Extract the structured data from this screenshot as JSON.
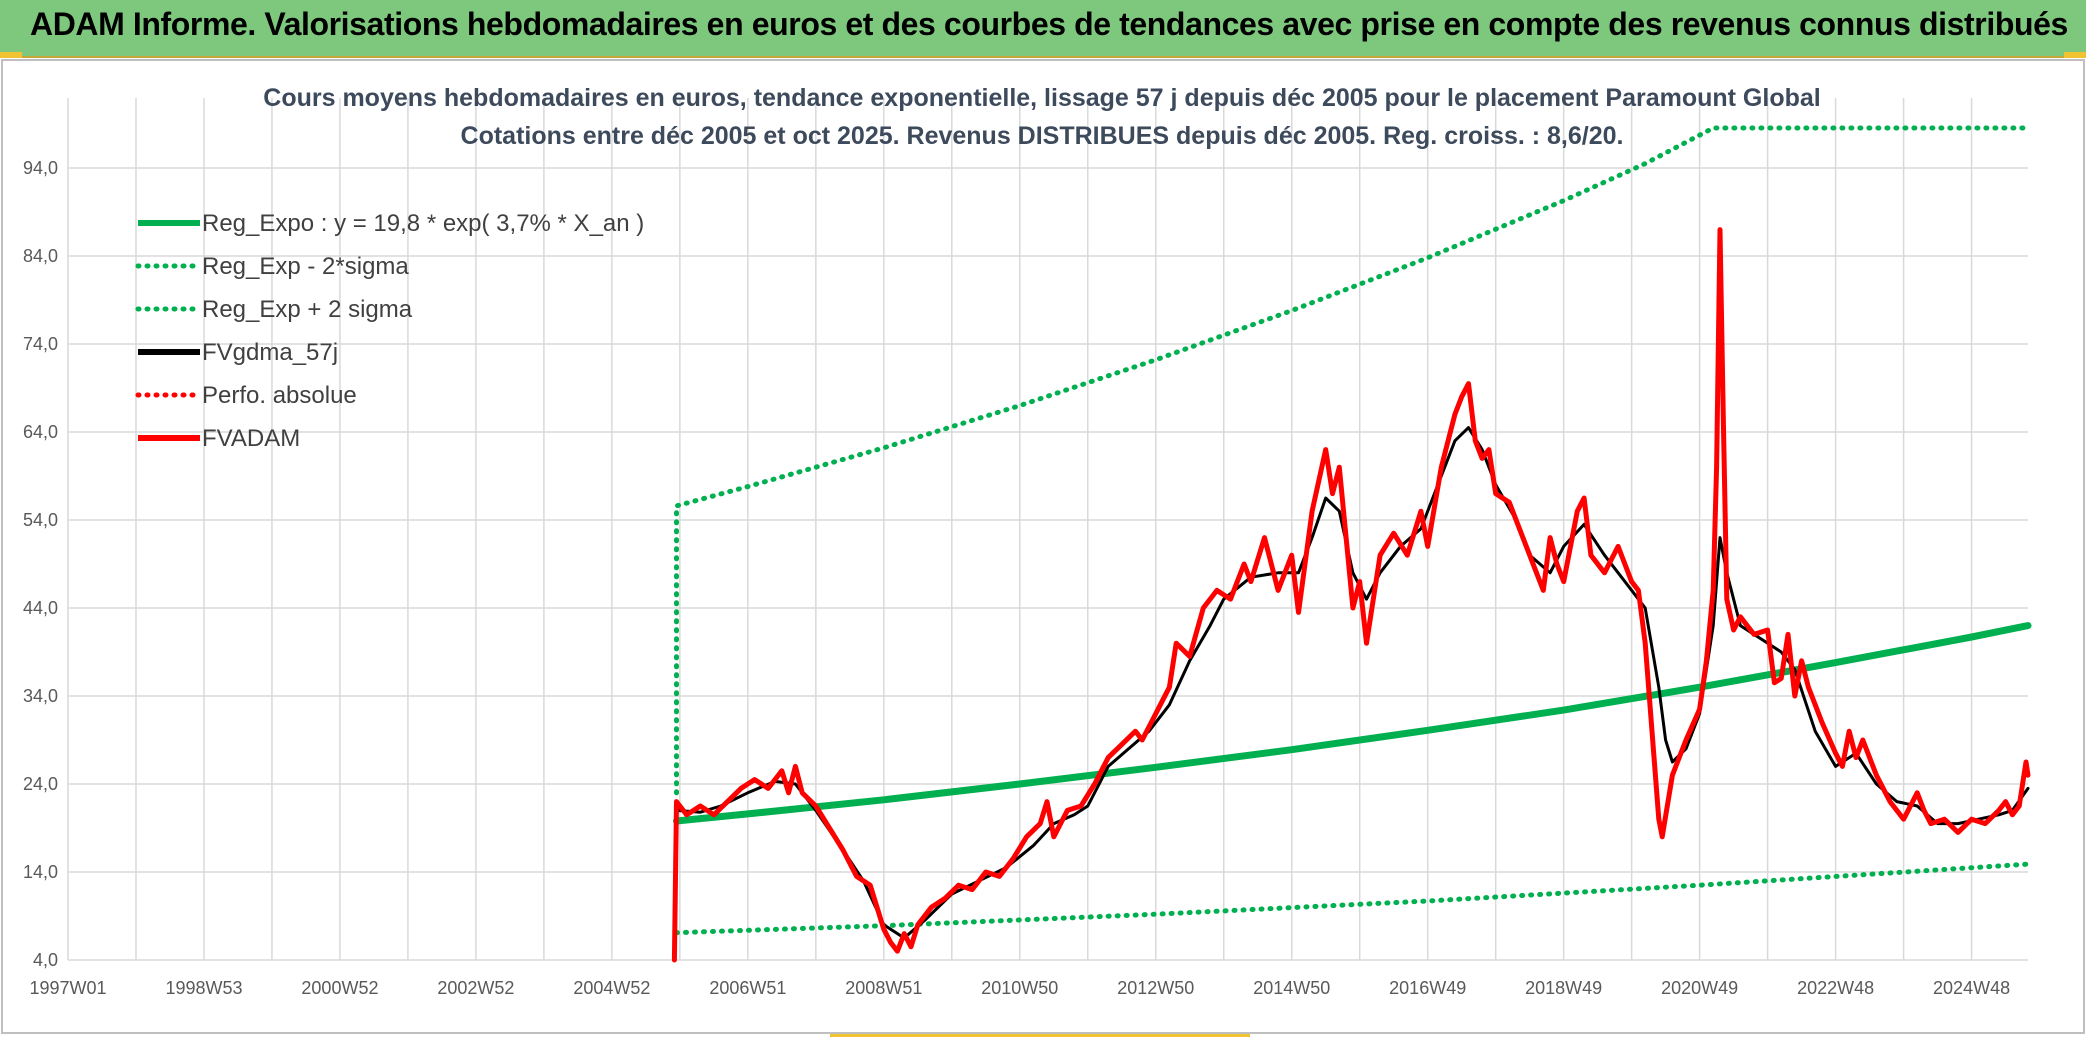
{
  "header": {
    "title": "ADAM Informe. Valorisations hebdomadaires en euros et des courbes de tendances avec prise en compte des revenus connus distribués"
  },
  "chart_data": {
    "type": "line",
    "title_lines": [
      "Cours moyens hebdomadaires en euros, tendance exponentielle, lissage 57 j depuis déc 2005 pour le placement Paramount Global",
      "Cotations entre déc 2005 et oct 2025. Revenus DISTRIBUES depuis déc 2005. Reg. croiss. : 8,6/20."
    ],
    "x_range": [
      1997.0,
      2025.83
    ],
    "ylim": [
      4,
      94
    ],
    "y_ticks": [
      "4,0",
      "14,0",
      "24,0",
      "34,0",
      "44,0",
      "54,0",
      "64,0",
      "74,0",
      "84,0",
      "94,0"
    ],
    "x_ticks": [
      {
        "label": "1997W01",
        "x": 1997.0
      },
      {
        "label": "1998W53",
        "x": 1999.0
      },
      {
        "label": "2000W52",
        "x": 2001.0
      },
      {
        "label": "2002W52",
        "x": 2003.0
      },
      {
        "label": "2004W52",
        "x": 2005.0
      },
      {
        "label": "2006W51",
        "x": 2007.0
      },
      {
        "label": "2008W51",
        "x": 2009.0
      },
      {
        "label": "2010W50",
        "x": 2011.0
      },
      {
        "label": "2012W50",
        "x": 2013.0
      },
      {
        "label": "2014W50",
        "x": 2015.0
      },
      {
        "label": "2016W49",
        "x": 2017.0
      },
      {
        "label": "2018W49",
        "x": 2019.0
      },
      {
        "label": "2020W49",
        "x": 2021.0
      },
      {
        "label": "2022W48",
        "x": 2023.0
      },
      {
        "label": "2024W48",
        "x": 2025.0
      }
    ],
    "grid": true,
    "legend_position": "top-left",
    "series": [
      {
        "name": "Reg_Expo : y = 19,8 * exp( 3,7% *  X_an )",
        "color": "#00b050",
        "style": "solid",
        "points": [
          [
            2005.95,
            19.8
          ],
          [
            2007,
            20.6
          ],
          [
            2009,
            22.2
          ],
          [
            2011,
            24.0
          ],
          [
            2013,
            25.9
          ],
          [
            2015,
            27.9
          ],
          [
            2017,
            30.1
          ],
          [
            2019,
            32.4
          ],
          [
            2021,
            35.0
          ],
          [
            2023,
            37.8
          ],
          [
            2025,
            40.7
          ],
          [
            2025.83,
            42.0
          ]
        ]
      },
      {
        "name": "Reg_Exp - 2*sigma",
        "color": "#00b050",
        "style": "dotted",
        "points": [
          [
            2005.95,
            7.1
          ],
          [
            2009,
            7.9
          ],
          [
            2013,
            9.2
          ],
          [
            2017,
            10.7
          ],
          [
            2021,
            12.5
          ],
          [
            2025.83,
            14.9
          ]
        ]
      },
      {
        "name": "Reg_Exp + 2 sigma",
        "color": "#00b050",
        "style": "dotted",
        "points": [
          [
            2005.95,
            23.0
          ],
          [
            2005.95,
            55.6
          ],
          [
            2007,
            57.8
          ],
          [
            2009,
            62.2
          ],
          [
            2011,
            67.0
          ],
          [
            2013,
            72.2
          ],
          [
            2015,
            77.8
          ],
          [
            2017,
            83.8
          ],
          [
            2019,
            90.3
          ],
          [
            2020.2,
            94.5
          ],
          [
            2021.2,
            99
          ],
          [
            2025.83,
            99
          ]
        ]
      },
      {
        "name": "FVgdma_57j",
        "color": "#000000",
        "style": "solid",
        "points": [
          [
            2005.95,
            21.0
          ],
          [
            2006.3,
            20.8
          ],
          [
            2006.6,
            21.5
          ],
          [
            2007.0,
            23.0
          ],
          [
            2007.4,
            24.3
          ],
          [
            2007.7,
            24.0
          ],
          [
            2008.0,
            21.0
          ],
          [
            2008.4,
            16.5
          ],
          [
            2008.7,
            13.0
          ],
          [
            2009.0,
            8.0
          ],
          [
            2009.3,
            6.5
          ],
          [
            2009.6,
            8.5
          ],
          [
            2010.0,
            11.5
          ],
          [
            2010.4,
            13.0
          ],
          [
            2010.8,
            14.5
          ],
          [
            2011.2,
            17.0
          ],
          [
            2011.5,
            19.5
          ],
          [
            2011.8,
            20.5
          ],
          [
            2012.0,
            21.5
          ],
          [
            2012.3,
            26.0
          ],
          [
            2012.6,
            28.0
          ],
          [
            2012.9,
            30.0
          ],
          [
            2013.2,
            33.0
          ],
          [
            2013.5,
            38.0
          ],
          [
            2013.8,
            42.0
          ],
          [
            2014.0,
            45.0
          ],
          [
            2014.4,
            47.5
          ],
          [
            2014.8,
            48.0
          ],
          [
            2015.1,
            48.0
          ],
          [
            2015.3,
            52.0
          ],
          [
            2015.5,
            56.5
          ],
          [
            2015.7,
            55.0
          ],
          [
            2015.9,
            48.0
          ],
          [
            2016.1,
            45.0
          ],
          [
            2016.3,
            48.0
          ],
          [
            2016.6,
            51.0
          ],
          [
            2016.9,
            53.0
          ],
          [
            2017.1,
            57.0
          ],
          [
            2017.4,
            63.0
          ],
          [
            2017.6,
            64.5
          ],
          [
            2017.8,
            62.0
          ],
          [
            2018.0,
            58.0
          ],
          [
            2018.3,
            54.0
          ],
          [
            2018.5,
            50.0
          ],
          [
            2018.8,
            48.0
          ],
          [
            2019.0,
            51.0
          ],
          [
            2019.3,
            53.5
          ],
          [
            2019.6,
            50.0
          ],
          [
            2019.9,
            47.0
          ],
          [
            2020.2,
            44.0
          ],
          [
            2020.4,
            35.0
          ],
          [
            2020.5,
            29.0
          ],
          [
            2020.6,
            26.5
          ],
          [
            2020.8,
            28.0
          ],
          [
            2021.0,
            32.0
          ],
          [
            2021.2,
            42.0
          ],
          [
            2021.3,
            52.0
          ],
          [
            2021.4,
            48.0
          ],
          [
            2021.6,
            42.0
          ],
          [
            2021.9,
            40.5
          ],
          [
            2022.2,
            39.0
          ],
          [
            2022.4,
            37.0
          ],
          [
            2022.7,
            30.0
          ],
          [
            2023.0,
            26.0
          ],
          [
            2023.3,
            27.5
          ],
          [
            2023.6,
            24.0
          ],
          [
            2023.9,
            22.0
          ],
          [
            2024.2,
            21.5
          ],
          [
            2024.5,
            19.5
          ],
          [
            2024.8,
            19.5
          ],
          [
            2025.1,
            20.0
          ],
          [
            2025.4,
            20.5
          ],
          [
            2025.6,
            21.0
          ],
          [
            2025.83,
            23.5
          ]
        ]
      },
      {
        "name": "Perfo. absolue",
        "color": "#ff0000",
        "style": "dotted",
        "points": []
      },
      {
        "name": "FVADAM",
        "color": "#ff0000",
        "style": "solid",
        "points": [
          [
            2005.92,
            4.0
          ],
          [
            2005.95,
            22.0
          ],
          [
            2006.1,
            20.5
          ],
          [
            2006.3,
            21.5
          ],
          [
            2006.5,
            20.5
          ],
          [
            2006.7,
            22.0
          ],
          [
            2006.9,
            23.5
          ],
          [
            2007.1,
            24.5
          ],
          [
            2007.3,
            23.5
          ],
          [
            2007.5,
            25.5
          ],
          [
            2007.6,
            23.0
          ],
          [
            2007.7,
            26.0
          ],
          [
            2007.8,
            23.0
          ],
          [
            2008.0,
            21.5
          ],
          [
            2008.2,
            19.0
          ],
          [
            2008.4,
            16.5
          ],
          [
            2008.6,
            13.5
          ],
          [
            2008.8,
            12.5
          ],
          [
            2009.0,
            7.5
          ],
          [
            2009.1,
            6.0
          ],
          [
            2009.2,
            5.0
          ],
          [
            2009.3,
            7.0
          ],
          [
            2009.4,
            5.5
          ],
          [
            2009.5,
            8.0
          ],
          [
            2009.7,
            10.0
          ],
          [
            2009.9,
            11.0
          ],
          [
            2010.1,
            12.5
          ],
          [
            2010.3,
            12.0
          ],
          [
            2010.5,
            14.0
          ],
          [
            2010.7,
            13.5
          ],
          [
            2010.9,
            15.5
          ],
          [
            2011.1,
            18.0
          ],
          [
            2011.3,
            19.5
          ],
          [
            2011.4,
            22.0
          ],
          [
            2011.5,
            18.0
          ],
          [
            2011.7,
            21.0
          ],
          [
            2011.9,
            21.5
          ],
          [
            2012.1,
            24.0
          ],
          [
            2012.3,
            27.0
          ],
          [
            2012.5,
            28.5
          ],
          [
            2012.7,
            30.0
          ],
          [
            2012.8,
            29.0
          ],
          [
            2013.0,
            32.0
          ],
          [
            2013.2,
            35.0
          ],
          [
            2013.3,
            40.0
          ],
          [
            2013.5,
            38.5
          ],
          [
            2013.7,
            44.0
          ],
          [
            2013.9,
            46.0
          ],
          [
            2014.1,
            45.0
          ],
          [
            2014.3,
            49.0
          ],
          [
            2014.4,
            47.0
          ],
          [
            2014.6,
            52.0
          ],
          [
            2014.8,
            46.0
          ],
          [
            2015.0,
            50.0
          ],
          [
            2015.1,
            43.5
          ],
          [
            2015.3,
            55.0
          ],
          [
            2015.5,
            62.0
          ],
          [
            2015.6,
            57.0
          ],
          [
            2015.7,
            60.0
          ],
          [
            2015.8,
            52.0
          ],
          [
            2015.9,
            44.0
          ],
          [
            2016.0,
            47.0
          ],
          [
            2016.1,
            40.0
          ],
          [
            2016.3,
            50.0
          ],
          [
            2016.5,
            52.5
          ],
          [
            2016.7,
            50.0
          ],
          [
            2016.9,
            55.0
          ],
          [
            2017.0,
            51.0
          ],
          [
            2017.2,
            60.0
          ],
          [
            2017.4,
            66.0
          ],
          [
            2017.5,
            68.0
          ],
          [
            2017.6,
            69.5
          ],
          [
            2017.7,
            63.0
          ],
          [
            2017.8,
            61.0
          ],
          [
            2017.9,
            62.0
          ],
          [
            2018.0,
            57.0
          ],
          [
            2018.2,
            56.0
          ],
          [
            2018.4,
            52.0
          ],
          [
            2018.6,
            48.0
          ],
          [
            2018.7,
            46.0
          ],
          [
            2018.8,
            52.0
          ],
          [
            2018.9,
            49.0
          ],
          [
            2019.0,
            47.0
          ],
          [
            2019.2,
            55.0
          ],
          [
            2019.3,
            56.5
          ],
          [
            2019.4,
            50.0
          ],
          [
            2019.6,
            48.0
          ],
          [
            2019.8,
            51.0
          ],
          [
            2020.0,
            47.0
          ],
          [
            2020.1,
            46.0
          ],
          [
            2020.2,
            40.0
          ],
          [
            2020.3,
            30.0
          ],
          [
            2020.4,
            20.0
          ],
          [
            2020.45,
            18.0
          ],
          [
            2020.6,
            25.0
          ],
          [
            2020.8,
            29.0
          ],
          [
            2021.0,
            32.5
          ],
          [
            2021.1,
            38.0
          ],
          [
            2021.2,
            46.0
          ],
          [
            2021.25,
            60.0
          ],
          [
            2021.3,
            87.0
          ],
          [
            2021.35,
            65.0
          ],
          [
            2021.4,
            45.0
          ],
          [
            2021.5,
            41.5
          ],
          [
            2021.6,
            43.0
          ],
          [
            2021.8,
            41.0
          ],
          [
            2022.0,
            41.5
          ],
          [
            2022.1,
            35.5
          ],
          [
            2022.2,
            36.0
          ],
          [
            2022.3,
            41.0
          ],
          [
            2022.4,
            34.0
          ],
          [
            2022.5,
            38.0
          ],
          [
            2022.6,
            35.0
          ],
          [
            2022.8,
            31.0
          ],
          [
            2023.0,
            27.5
          ],
          [
            2023.1,
            26.0
          ],
          [
            2023.2,
            30.0
          ],
          [
            2023.3,
            27.0
          ],
          [
            2023.4,
            29.0
          ],
          [
            2023.6,
            25.0
          ],
          [
            2023.8,
            22.0
          ],
          [
            2024.0,
            20.0
          ],
          [
            2024.2,
            23.0
          ],
          [
            2024.3,
            21.0
          ],
          [
            2024.4,
            19.5
          ],
          [
            2024.6,
            20.0
          ],
          [
            2024.8,
            18.5
          ],
          [
            2025.0,
            20.0
          ],
          [
            2025.2,
            19.5
          ],
          [
            2025.4,
            21.0
          ],
          [
            2025.5,
            22.0
          ],
          [
            2025.6,
            20.5
          ],
          [
            2025.7,
            21.5
          ],
          [
            2025.75,
            24.0
          ],
          [
            2025.8,
            26.5
          ],
          [
            2025.83,
            25.0
          ]
        ]
      }
    ]
  }
}
